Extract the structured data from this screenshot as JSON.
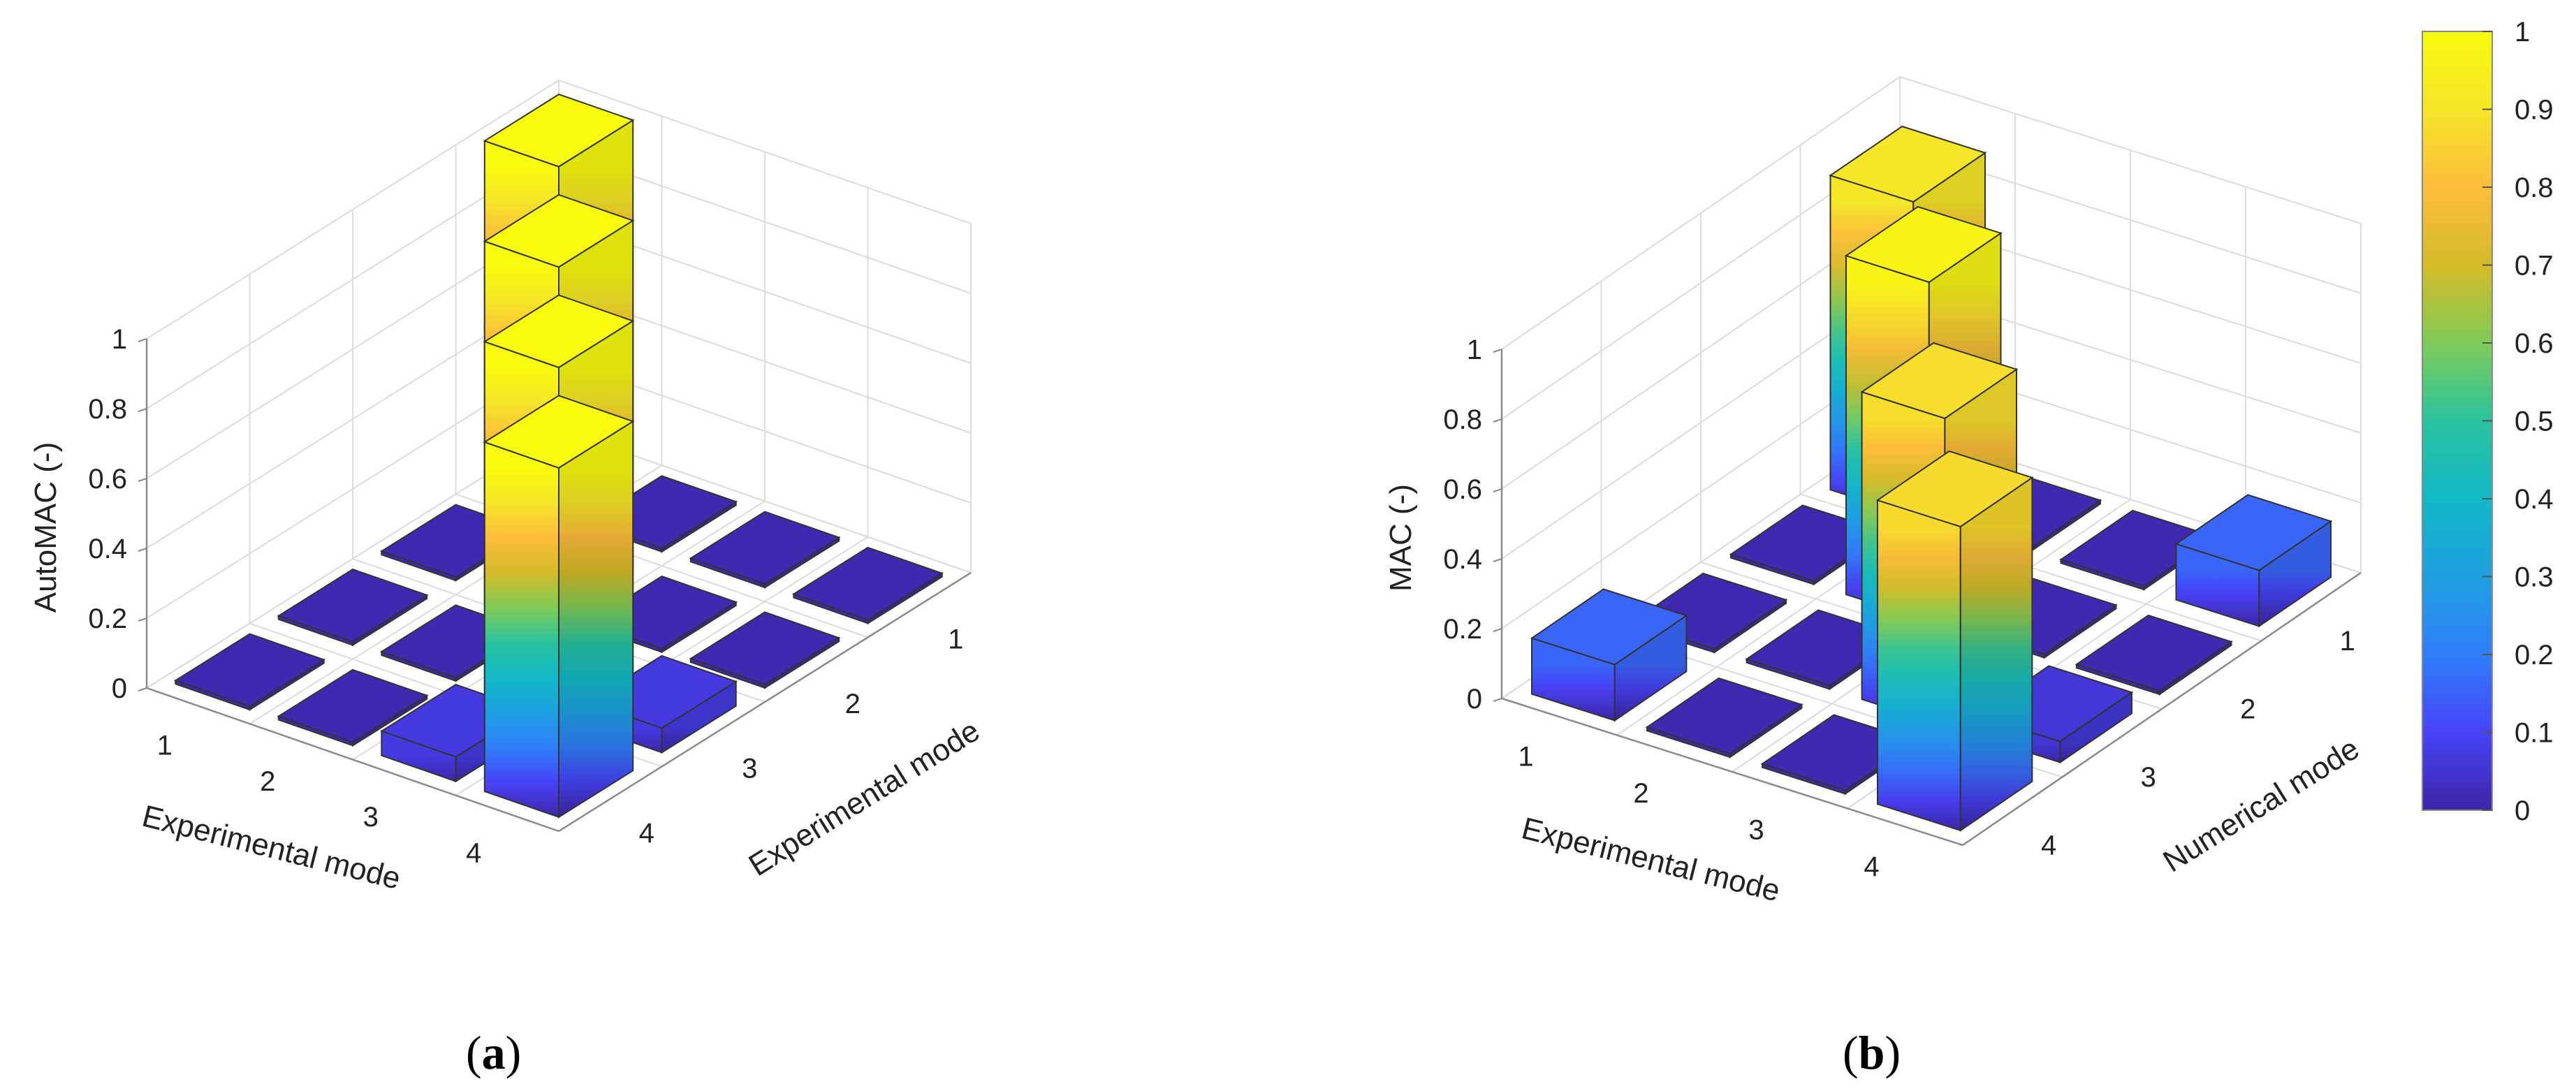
{
  "chart_data": [
    {
      "type": "bar3d",
      "panel_label": "a",
      "zlabel": "AutoMAC (-)",
      "xlabel": "Experimental mode",
      "ylabel": "Experimental mode",
      "x_ticks": [
        "1",
        "2",
        "3",
        "4"
      ],
      "y_ticks": [
        "1",
        "2",
        "3",
        "4"
      ],
      "z_ticks": [
        "0",
        "0.2",
        "0.4",
        "0.6",
        "0.8",
        "1"
      ],
      "zlim": [
        0,
        1
      ],
      "values": [
        [
          1.0,
          0.01,
          0.01,
          0.01
        ],
        [
          0.01,
          1.0,
          0.01,
          0.01
        ],
        [
          0.01,
          0.01,
          1.0,
          0.07
        ],
        [
          0.01,
          0.01,
          0.07,
          1.0
        ]
      ]
    },
    {
      "type": "bar3d",
      "panel_label": "b",
      "zlabel": "MAC (-)",
      "xlabel": "Experimental mode",
      "ylabel": "Numerical mode",
      "x_ticks": [
        "1",
        "2",
        "3",
        "4"
      ],
      "y_ticks": [
        "1",
        "2",
        "3",
        "4"
      ],
      "z_ticks": [
        "0",
        "0.2",
        "0.4",
        "0.6",
        "0.8",
        "1"
      ],
      "zlim": [
        0,
        1
      ],
      "values": [
        [
          0.9,
          0.01,
          0.01,
          0.16
        ],
        [
          0.01,
          0.97,
          0.01,
          0.01
        ],
        [
          0.01,
          0.01,
          0.88,
          0.06
        ],
        [
          0.16,
          0.01,
          0.01,
          0.87
        ]
      ]
    }
  ],
  "colorbar": {
    "ticks": [
      "0",
      "0.1",
      "0.2",
      "0.3",
      "0.4",
      "0.5",
      "0.6",
      "0.7",
      "0.8",
      "0.9",
      "1"
    ],
    "min": 0,
    "max": 1,
    "colormap": [
      "#3e26a8",
      "#4743f8",
      "#2f7efa",
      "#1fa0e1",
      "#11b8c6",
      "#2ac39e",
      "#80cb58",
      "#d4bb28",
      "#fdbd3c",
      "#f5e628",
      "#f9fb0e"
    ]
  }
}
